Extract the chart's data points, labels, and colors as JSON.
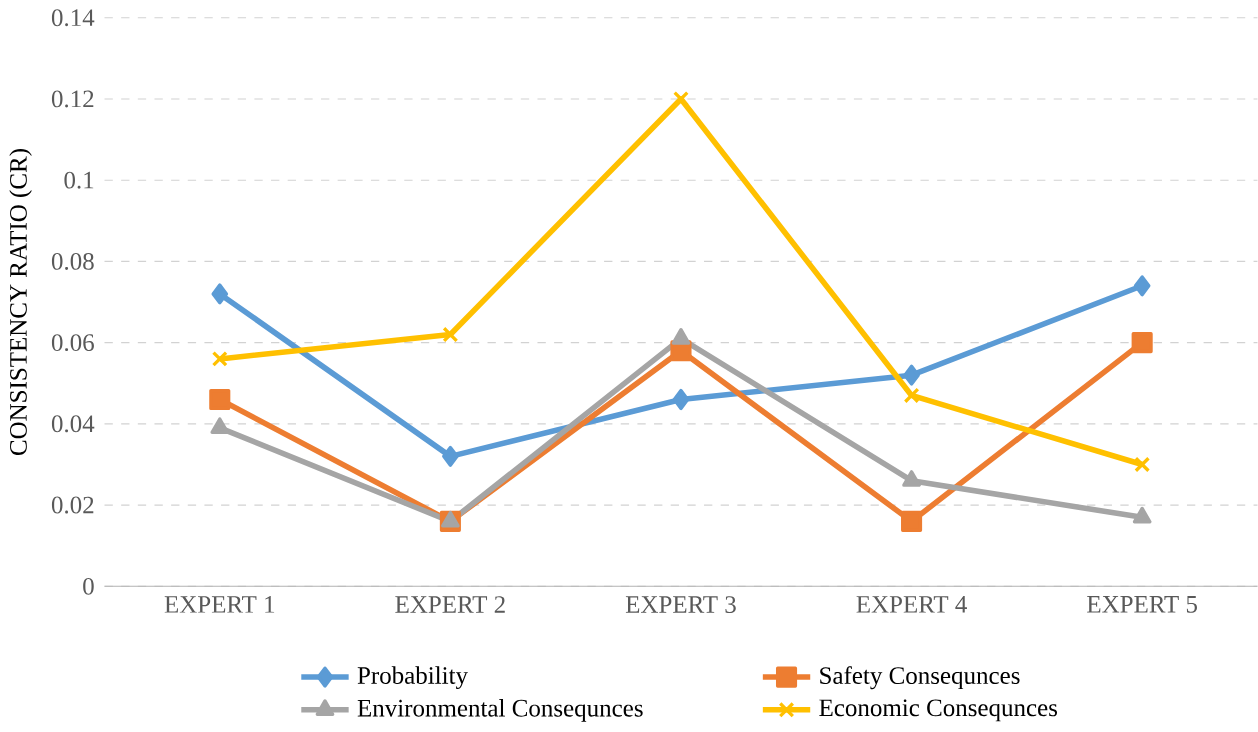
{
  "chart_data": {
    "type": "line",
    "ylabel": "CONSISTENCY RATIO  (CR)",
    "categories": [
      "EXPERT 1",
      "EXPERT 2",
      "EXPERT 3",
      "EXPERT 4",
      "EXPERT 5"
    ],
    "series": [
      {
        "name": "Probability",
        "color": "#5b9bd5",
        "marker": "diamond",
        "values": [
          0.072,
          0.032,
          0.046,
          0.052,
          0.074
        ]
      },
      {
        "name": "Safety Consequnces",
        "color": "#ed7d31",
        "marker": "square",
        "values": [
          0.046,
          0.016,
          0.058,
          0.016,
          0.06
        ]
      },
      {
        "name": "Environmental Consequnces",
        "color": "#a5a5a5",
        "marker": "triangle",
        "values": [
          0.039,
          0.016,
          0.061,
          0.026,
          0.017
        ]
      },
      {
        "name": "Economic Consequnces",
        "color": "#ffc000",
        "marker": "cross",
        "values": [
          0.056,
          0.062,
          0.12,
          0.047,
          0.03
        ]
      }
    ],
    "ylim": [
      0,
      0.14
    ],
    "yticks": [
      0,
      0.02,
      0.04,
      0.06,
      0.08,
      0.1,
      0.12,
      0.14
    ],
    "grid": "y",
    "legend": "bottom",
    "line_style": "solid"
  }
}
